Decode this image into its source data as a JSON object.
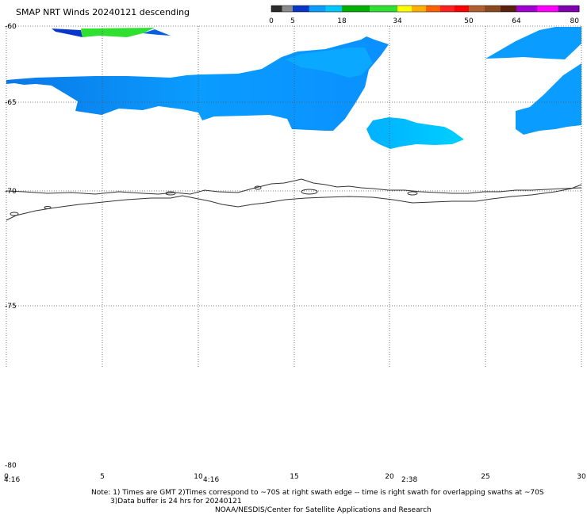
{
  "title": "SMAP NRT Winds  20240121 descending",
  "colorbar": {
    "ticks": [
      "0",
      "5",
      "18",
      "34",
      "50",
      "64",
      "80"
    ],
    "segments": [
      {
        "colors": [
          "#2b2b2b",
          "#8a8a8a"
        ]
      },
      {
        "colors": [
          "#0a36c8",
          "#0a9cff",
          "#00c8ff"
        ]
      },
      {
        "colors": [
          "#00b000",
          "#30e030"
        ]
      },
      {
        "colors": [
          "#ffff00",
          "#ffb000",
          "#ff6000",
          "#ff2020",
          "#ff0000"
        ]
      },
      {
        "colors": [
          "#b06030",
          "#8a4a20",
          "#5a2010"
        ]
      },
      {
        "colors": [
          "#a000d0",
          "#ff00ff",
          "#8000b0"
        ]
      }
    ]
  },
  "map": {
    "lat_labels": [
      "-60",
      "-65",
      "-70",
      "-75",
      "-80"
    ],
    "lon_labels": [
      "0",
      "5",
      "10",
      "15",
      "20",
      "25",
      "30"
    ],
    "time_labels": [
      "4:16",
      "4:16",
      "2:38"
    ],
    "colors": {
      "wind_light": "#00c8ff",
      "wind_mid": "#0a9cff",
      "wind_dark": "#0a36c8",
      "wind_green": "#30e030",
      "coast": "#333333",
      "grid": "#555555"
    }
  },
  "notes": {
    "line1": "Note: 1) Times are GMT 2)Times correspond to ~70S at right swath edge -- time is right swath for overlapping swaths at ~70S",
    "line2": "3)Data buffer is 24 hrs for 20240121",
    "line3": "NOAA/NESDIS/Center for Satellite Applications and Research"
  }
}
